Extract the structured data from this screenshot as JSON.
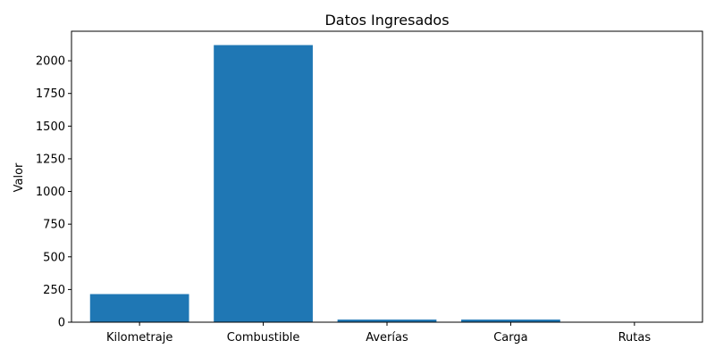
{
  "chart_data": {
    "type": "bar",
    "title": "Datos Ingresados",
    "xlabel": "",
    "ylabel": "Valor",
    "categories": [
      "Kilometraje",
      "Combustible",
      "Averías",
      "Carga",
      "Rutas"
    ],
    "values": [
      215,
      2120,
      20,
      20,
      2
    ],
    "ylim": [
      0,
      2226
    ],
    "yticks": [
      0,
      250,
      500,
      750,
      1000,
      1250,
      1500,
      1750,
      2000
    ],
    "grid": false,
    "legend": "none",
    "bar_color": "#1f77b4"
  }
}
